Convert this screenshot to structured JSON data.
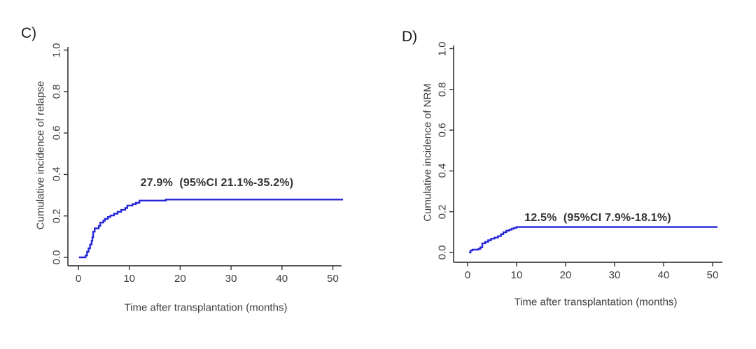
{
  "figure": {
    "background": "#ffffff",
    "curve_color": "#2626d8",
    "axis_color": "#404040"
  },
  "chart_data": [
    {
      "type": "line",
      "step": true,
      "panel_label": "C)",
      "xlabel": "Time after transplantation (months)",
      "ylabel": "Cumulative incidence of relapse",
      "annotation": "27.9%  (95%CI 21.1%-35.2%)",
      "estimate_percent": 27.9,
      "ci_lower_percent": 21.1,
      "ci_upper_percent": 35.2,
      "line_color": "#2626d8",
      "xlim": [
        0,
        52
      ],
      "ylim": [
        0,
        1.0
      ],
      "x_ticks": [
        0,
        10,
        20,
        30,
        40,
        50
      ],
      "y_ticks": [
        "0.0",
        "0.2",
        "0.4",
        "0.6",
        "0.8",
        "1.0"
      ],
      "grid": false,
      "x_end": 52,
      "steps": [
        [
          0.1,
          0.0
        ],
        [
          1.4,
          0.009
        ],
        [
          1.7,
          0.027
        ],
        [
          2.0,
          0.044
        ],
        [
          2.3,
          0.062
        ],
        [
          2.6,
          0.08
        ],
        [
          2.75,
          0.097
        ],
        [
          2.9,
          0.124
        ],
        [
          3.2,
          0.14
        ],
        [
          4.0,
          0.152
        ],
        [
          4.3,
          0.168
        ],
        [
          4.9,
          0.177
        ],
        [
          5.2,
          0.186
        ],
        [
          5.8,
          0.195
        ],
        [
          6.3,
          0.202
        ],
        [
          7.0,
          0.211
        ],
        [
          7.7,
          0.22
        ],
        [
          8.4,
          0.229
        ],
        [
          9.2,
          0.238
        ],
        [
          9.6,
          0.25
        ],
        [
          10.6,
          0.257
        ],
        [
          11.3,
          0.263
        ],
        [
          12.0,
          0.274
        ],
        [
          17.2,
          0.279
        ]
      ]
    },
    {
      "type": "line",
      "step": true,
      "panel_label": "D)",
      "xlabel": "Time after transplantation (months)",
      "ylabel": "Cumulative incidence of NRM",
      "annotation": "12.5%  (95%CI 7.9%-18.1%)",
      "estimate_percent": 12.5,
      "ci_lower_percent": 7.9,
      "ci_upper_percent": 18.1,
      "line_color": "#2626d8",
      "xlim": [
        0,
        51
      ],
      "ylim": [
        0,
        1.0
      ],
      "x_ticks": [
        0,
        10,
        20,
        30,
        40,
        50
      ],
      "y_ticks": [
        "0.0",
        "0.2",
        "0.4",
        "0.6",
        "0.8",
        "1.0"
      ],
      "grid": false,
      "x_end": 51,
      "steps": [
        [
          0.3,
          0.0
        ],
        [
          0.6,
          0.01
        ],
        [
          1.0,
          0.014
        ],
        [
          2.2,
          0.018
        ],
        [
          2.6,
          0.025
        ],
        [
          3.0,
          0.045
        ],
        [
          3.6,
          0.052
        ],
        [
          4.2,
          0.06
        ],
        [
          4.8,
          0.068
        ],
        [
          5.5,
          0.073
        ],
        [
          6.2,
          0.08
        ],
        [
          6.8,
          0.09
        ],
        [
          7.3,
          0.099
        ],
        [
          7.9,
          0.107
        ],
        [
          8.5,
          0.112
        ],
        [
          9.0,
          0.117
        ],
        [
          9.5,
          0.121
        ],
        [
          10.0,
          0.125
        ]
      ]
    }
  ]
}
